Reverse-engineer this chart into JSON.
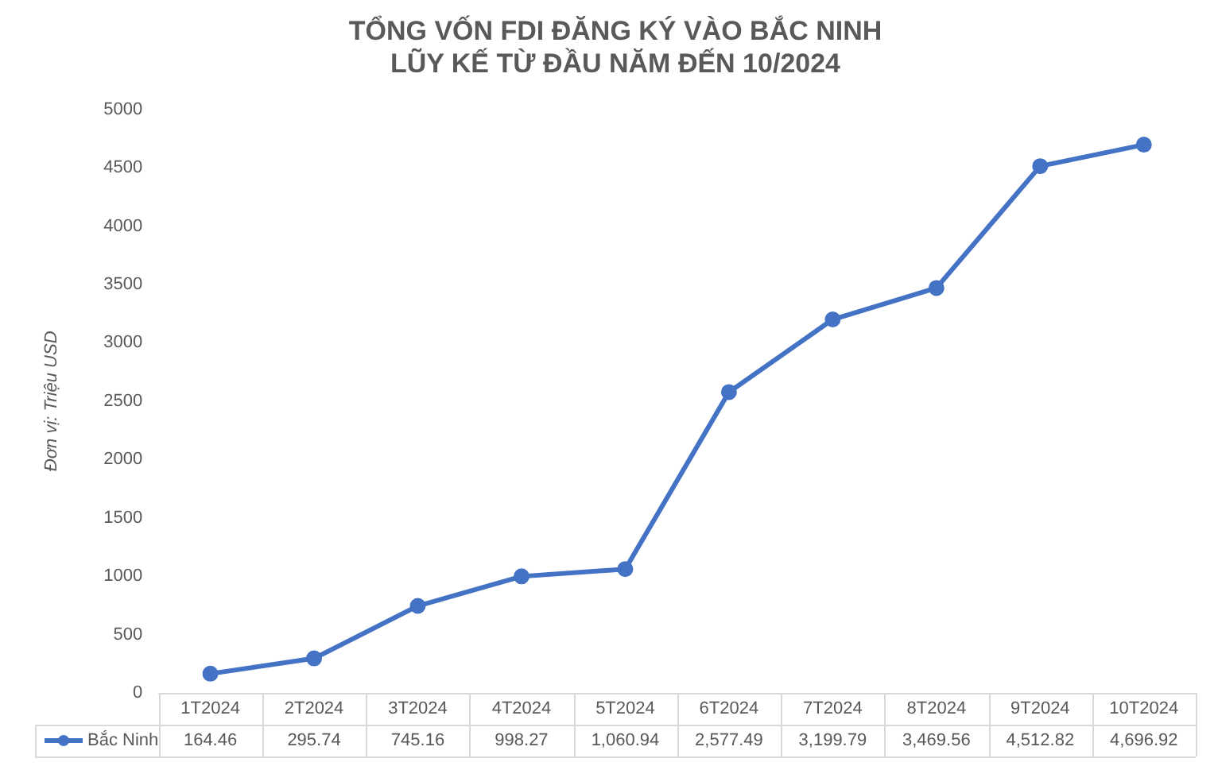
{
  "chart_data": {
    "type": "line",
    "title": "TỔNG VỐN FDI ĐĂNG KÝ VÀO BẮC NINH\nLŨY KẾ TỪ ĐẦU NĂM ĐẾN 10/2024",
    "ylabel": "Đơn vị: Triệu USD",
    "categories": [
      "1T2024",
      "2T2024",
      "3T2024",
      "4T2024",
      "5T2024",
      "6T2024",
      "7T2024",
      "8T2024",
      "9T2024",
      "10T2024"
    ],
    "series": [
      {
        "name": "Bắc Ninh",
        "color": "#4472c4",
        "values": [
          164.46,
          295.74,
          745.16,
          998.27,
          1060.94,
          2577.49,
          3199.79,
          3469.56,
          4512.82,
          4696.92
        ],
        "value_labels": [
          "164.46",
          "295.74",
          "745.16",
          "998.27",
          "1,060.94",
          "2,577.49",
          "3,199.79",
          "3,469.56",
          "4,512.82",
          "4,696.92"
        ]
      }
    ],
    "ylim": [
      0,
      5000
    ],
    "yticks": [
      0,
      500,
      1000,
      1500,
      2000,
      2500,
      3000,
      3500,
      4000,
      4500,
      5000
    ],
    "grid": false,
    "legend": "bottom",
    "marker": "circle",
    "line_style": "solid"
  }
}
